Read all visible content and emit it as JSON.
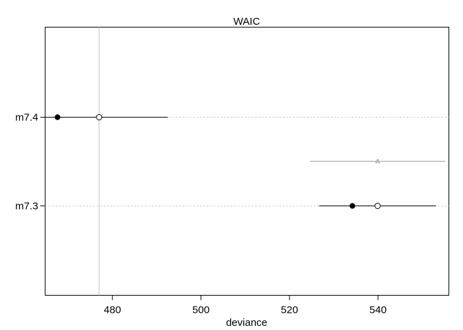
{
  "chart_data": {
    "type": "scatter",
    "title": "WAIC",
    "xlabel": "deviance",
    "ylabel": "",
    "xlim": [
      464.8,
      556.0
    ],
    "x_ticks": [
      480,
      500,
      520,
      540
    ],
    "reference_line_x": 477.0,
    "models": [
      {
        "label": "m7.4",
        "in_sample_deviance": 467.6,
        "waic": 477.0,
        "waic_interval": [
          462.0,
          492.5
        ]
      },
      {
        "label": "m7.3",
        "in_sample_deviance": 534.2,
        "waic": 539.9,
        "waic_interval": [
          526.7,
          553.1
        ],
        "dwaic_point": 539.9,
        "dwaic_interval": [
          524.6,
          555.2
        ]
      }
    ],
    "grid": false,
    "legend": "none"
  },
  "colors": {
    "points": "#000000",
    "interval": "#000000",
    "dwaic": "#a0a0a0",
    "reference": "#bebebe",
    "dotted": "#bebebe"
  }
}
